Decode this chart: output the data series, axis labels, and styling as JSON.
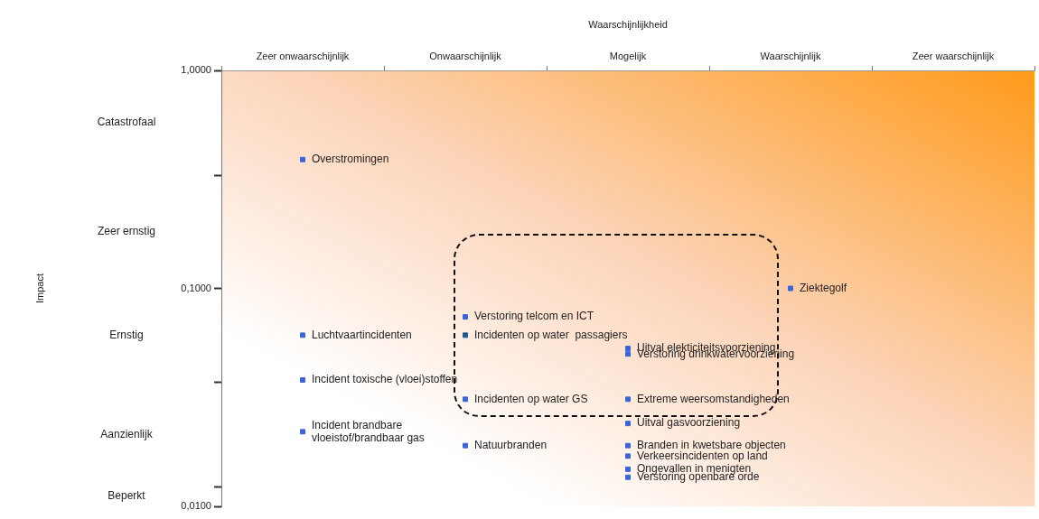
{
  "chart_data": {
    "type": "scatter",
    "xlabel": "Waarschijnlijkheid",
    "categories": [
      "Zeer onwaarschijnlijk",
      "Onwaarschijnlijk",
      "Mogelijk",
      "Waarschijnlijk",
      "Zeer waarschijnlijk"
    ],
    "series": [
      {
        "x": [
          "Zeer onwaarschijnlijk",
          "Waarschijnlijk",
          "Onwaarschijnlijk",
          "Zeer onwaarschijnlijk",
          "Onwaarschijnlijk",
          "Mogelijk",
          "Mogelijk",
          "Zeer onwaarschijnlijk",
          "Onwaarschijnlijk",
          "Mogelijk",
          "Mogelijk",
          "Zeer onwaarschijnlijk",
          "Onwaarschijnlijk",
          "Mogelijk",
          "Mogelijk",
          "Mogelijk",
          "Mogelijk"
        ],
        "values": [
          0.39,
          0.1,
          0.074,
          0.061,
          0.061,
          0.053,
          0.05,
          0.038,
          0.031,
          0.031,
          0.024,
          0.022,
          0.019,
          0.019,
          0.017,
          0.0148,
          0.0136
        ],
        "colors": [
          "#3b64d8",
          "#3b64d8",
          "#3b64d8",
          "#3b64d8",
          "#1f5a8a",
          "#3b64d8",
          "#3b64d8",
          "#3b64d8",
          "#3b64d8",
          "#3b64d8",
          "#3b64d8",
          "#3b64d8",
          "#3b64d8",
          "#3b64d8",
          "#3b64d8",
          "#3b64d8",
          "#3b64d8"
        ]
      }
    ],
    "log": "y",
    "ylim": [
      0.01,
      1
    ],
    "yticks": [
      {
        "value": 1,
        "label": "1,0000"
      },
      {
        "value": 0.33,
        "label": null
      },
      {
        "value": 0.1,
        "label": "0,1000"
      },
      {
        "value": 0.037,
        "label": null
      },
      {
        "value": 0.0123,
        "label": null
      },
      {
        "value": 0.01,
        "label": "0,0100"
      }
    ],
    "annotations": [
      "Catastrofaal",
      "Zeer ernstig",
      "Ernstig",
      "Aanzienlijk",
      "Beperkt",
      "Impact",
      {
        "text": "Overstromingen",
        "x": "Zeer onwaarschijnlijk",
        "y": 0.39
      },
      {
        "text": "Ziektegolf",
        "x": "Waarschijnlijk",
        "y": 0.1
      },
      {
        "text": "Verstoring telcom en ICT",
        "x": "Onwaarschijnlijk",
        "y": 0.074
      },
      {
        "text": "Luchtvaartincidenten",
        "x": "Zeer onwaarschijnlijk",
        "y": 0.061
      },
      {
        "text": "Incidenten op water  passagiers",
        "x": "Onwaarschijnlijk",
        "y": 0.061
      },
      {
        "text": "Uitval elekticiteitsvoorziening",
        "x": "Mogelijk",
        "y": 0.053
      },
      {
        "text": "Verstoring drinkwatervoorziening",
        "x": "Mogelijk",
        "y": 0.05
      },
      {
        "text": "Incident toxische (vloei)stoffen",
        "x": "Zeer onwaarschijnlijk",
        "y": 0.038
      },
      {
        "text": "Incidenten op water GS",
        "x": "Onwaarschijnlijk",
        "y": 0.031
      },
      {
        "text": "Extreme weersomstandigheden",
        "x": "Mogelijk",
        "y": 0.031
      },
      {
        "text": "Uitval gasvoorziening",
        "x": "Mogelijk",
        "y": 0.024
      },
      {
        "text": "Incident brandbare\nvloeistof/brandbaar gas",
        "x": "Zeer onwaarschijnlijk",
        "y": 0.022
      },
      {
        "text": "Natuurbranden",
        "x": "Onwaarschijnlijk",
        "y": 0.019
      },
      {
        "text": "Branden in kwetsbare objecten",
        "x": "Mogelijk",
        "y": 0.019
      },
      {
        "text": "Verkeersincidenten op land",
        "x": "Mogelijk",
        "y": 0.017
      },
      {
        "text": "Ongevallen in menigten",
        "x": "Mogelijk",
        "y": 0.0148
      },
      {
        "text": "Verstoring openbare orde",
        "x": "Mogelijk",
        "y": 0.0136
      }
    ],
    "marker": "square",
    "grid": false,
    "legend": false
  }
}
